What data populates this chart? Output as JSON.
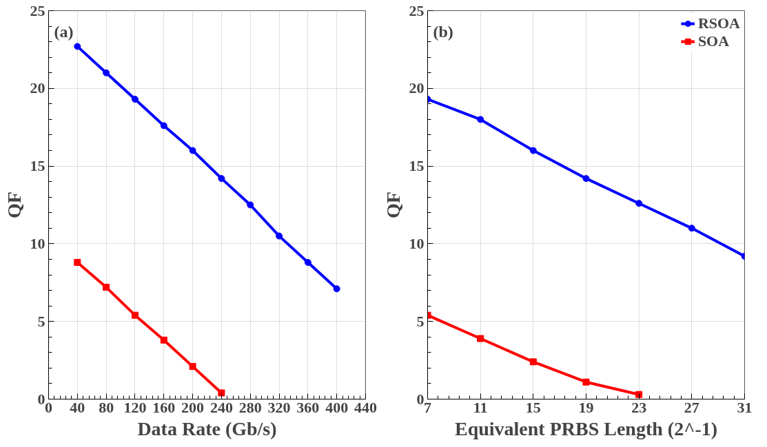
{
  "chart_data": [
    {
      "type": "line",
      "xlabel": "Data Rate (Gb/s)",
      "ylabel": "QF",
      "annotations": [
        "(a)"
      ],
      "xlim": [
        0,
        440
      ],
      "xticks": [
        0,
        40,
        80,
        120,
        160,
        200,
        240,
        280,
        320,
        360,
        400,
        440
      ],
      "ylim": [
        0,
        25
      ],
      "yticks": [
        0,
        5,
        10,
        15,
        20,
        25
      ],
      "grid": true,
      "legend": false,
      "series": [
        {
          "color": "#0000ff",
          "marker": "circle",
          "x": [
            40,
            80,
            120,
            160,
            200,
            240,
            280,
            320,
            360,
            400
          ],
          "values": [
            22.7,
            21.0,
            19.3,
            17.6,
            16.0,
            14.2,
            12.5,
            10.5,
            8.8,
            7.1
          ]
        },
        {
          "color": "#ff0000",
          "marker": "square",
          "x": [
            40,
            80,
            120,
            160,
            200,
            240
          ],
          "values": [
            8.8,
            7.2,
            5.4,
            3.8,
            2.1,
            0.4
          ]
        }
      ]
    },
    {
      "type": "line",
      "xlabel": "Equivalent PRBS Length (2^-1)",
      "ylabel": "QF",
      "annotations": [
        "(b)"
      ],
      "xlim": [
        7,
        31
      ],
      "xticks": [
        7,
        11,
        15,
        19,
        23,
        27,
        31
      ],
      "ylim": [
        0,
        25
      ],
      "yticks": [
        0,
        5,
        10,
        15,
        20,
        25
      ],
      "grid": true,
      "legend": "top right",
      "series": [
        {
          "name": "RSOA",
          "color": "#0000ff",
          "marker": "circle",
          "x": [
            7,
            11,
            15,
            19,
            23,
            27,
            31
          ],
          "values": [
            19.3,
            18.0,
            16.0,
            14.2,
            12.6,
            11.0,
            9.2
          ]
        },
        {
          "name": "SOA",
          "color": "#ff0000",
          "marker": "square",
          "x": [
            7,
            11,
            15,
            19,
            23
          ],
          "values": [
            5.4,
            3.9,
            2.4,
            1.1,
            0.3
          ]
        }
      ]
    }
  ]
}
